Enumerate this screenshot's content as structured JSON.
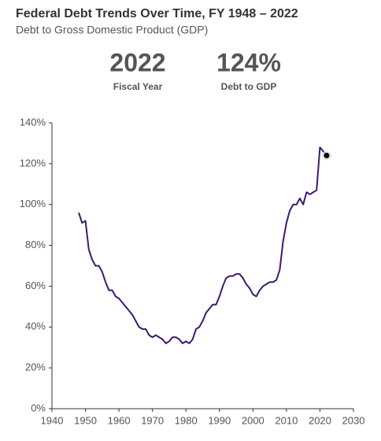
{
  "chart_data": {
    "type": "line",
    "title": "Federal Debt Trends Over Time, FY 1948 – 2022",
    "subtitle": "Debt to Gross Domestic Product (GDP)",
    "highlight": {
      "year": "2022",
      "year_label": "Fiscal Year",
      "value": "124%",
      "value_label": "Debt to GDP"
    },
    "x": [
      1948,
      1949,
      1950,
      1951,
      1952,
      1953,
      1954,
      1955,
      1956,
      1957,
      1958,
      1959,
      1960,
      1961,
      1962,
      1963,
      1964,
      1965,
      1966,
      1967,
      1968,
      1969,
      1970,
      1971,
      1972,
      1973,
      1974,
      1975,
      1976,
      1977,
      1978,
      1979,
      1980,
      1981,
      1982,
      1983,
      1984,
      1985,
      1986,
      1987,
      1988,
      1989,
      1990,
      1991,
      1992,
      1993,
      1994,
      1995,
      1996,
      1997,
      1998,
      1999,
      2000,
      2001,
      2002,
      2003,
      2004,
      2005,
      2006,
      2007,
      2008,
      2009,
      2010,
      2011,
      2012,
      2013,
      2014,
      2015,
      2016,
      2017,
      2018,
      2019,
      2020,
      2021,
      2022
    ],
    "values": [
      96,
      91,
      92,
      78,
      73,
      70,
      70,
      67,
      62,
      58,
      58,
      55,
      54,
      52,
      50,
      48,
      46,
      43,
      40,
      39,
      39,
      36,
      35,
      36,
      35,
      34,
      32,
      33,
      35,
      35,
      34,
      32,
      33,
      32,
      34,
      39,
      40,
      43,
      47,
      49,
      51,
      51,
      55,
      60,
      64,
      65,
      65,
      66,
      66,
      64,
      61,
      59,
      56,
      55,
      58,
      60,
      61,
      62,
      62,
      63,
      68,
      82,
      91,
      97,
      100,
      100,
      103,
      100,
      106,
      105,
      106,
      107,
      128,
      126,
      124
    ],
    "color": "#3d1a6e",
    "marker_color": "#000000",
    "xlim": [
      1940,
      2030
    ],
    "xticks": [
      1940,
      1950,
      1960,
      1970,
      1980,
      1990,
      2000,
      2010,
      2020,
      2030
    ],
    "ylim": [
      0,
      140
    ],
    "yticks": [
      {
        "value": 0,
        "label": "0%"
      },
      {
        "value": 20,
        "label": "20%"
      },
      {
        "value": 40,
        "label": "40%"
      },
      {
        "value": 60,
        "label": "60%"
      },
      {
        "value": 80,
        "label": "80%"
      },
      {
        "value": 100,
        "label": "100%"
      },
      {
        "value": 120,
        "label": "120%"
      },
      {
        "value": 140,
        "label": "140%"
      }
    ]
  }
}
